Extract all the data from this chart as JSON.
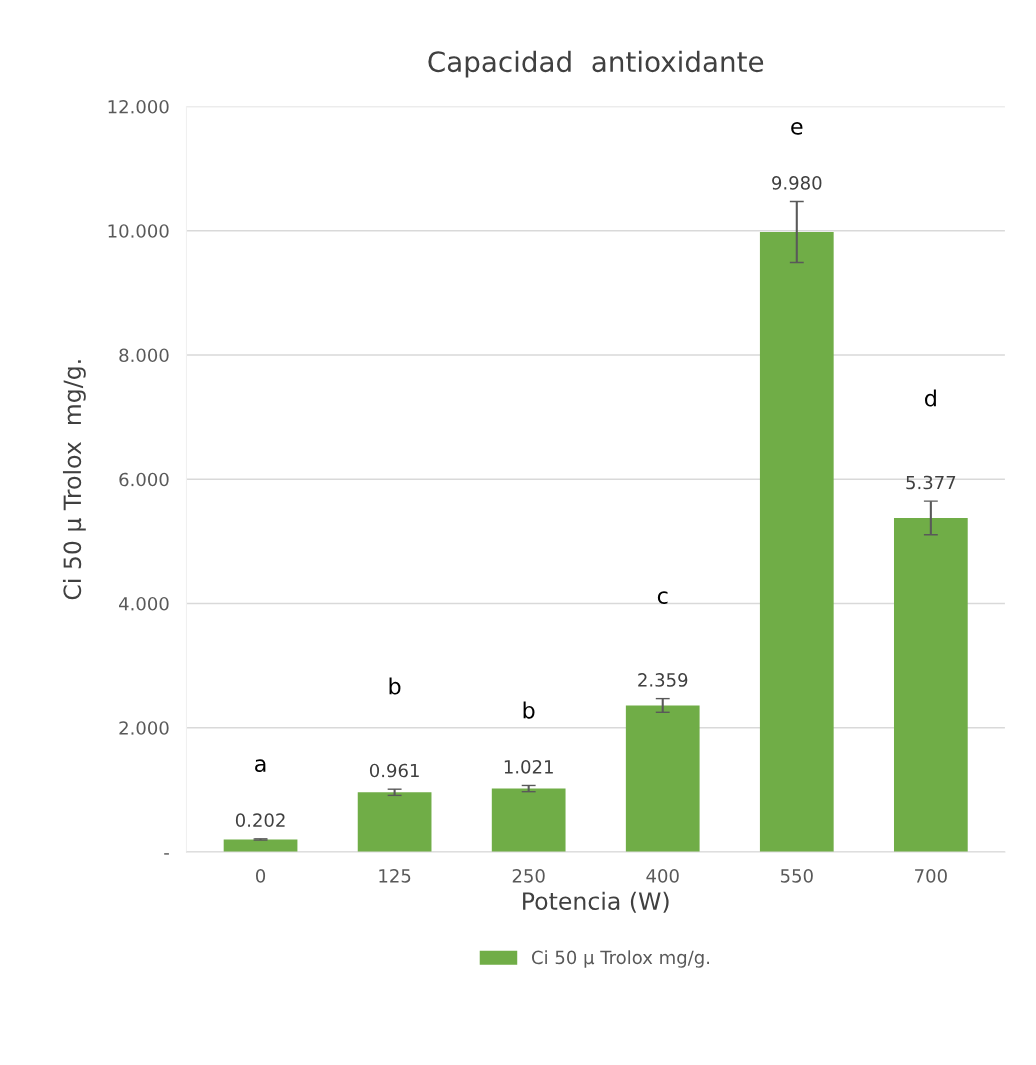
{
  "chart_data": {
    "type": "bar",
    "title": "Capacidad  antioxidante",
    "xlabel": "Potencia (W)",
    "ylabel": "Ci 50 µ Trolox  mg/g.",
    "categories": [
      "0",
      "125",
      "250",
      "400",
      "550",
      "700"
    ],
    "series": [
      {
        "name": "Ci 50 µ Trolox mg/g.",
        "color": "#70ad47",
        "values": [
          0.202,
          0.961,
          1.021,
          2.359,
          9.98,
          5.377
        ],
        "errors": [
          0.01,
          0.05,
          0.05,
          0.11,
          0.49,
          0.27
        ],
        "value_labels": [
          "0.202",
          "0.961",
          "1.021",
          "2.359",
          "9.980",
          "5.377"
        ]
      }
    ],
    "ylim": [
      0,
      12
    ],
    "yticks": [
      {
        "value": 0,
        "label": "-"
      },
      {
        "value": 2,
        "label": "2.000"
      },
      {
        "value": 4,
        "label": "4.000"
      },
      {
        "value": 6,
        "label": "6.000"
      },
      {
        "value": 8,
        "label": "8.000"
      },
      {
        "value": 10,
        "label": "10.000"
      },
      {
        "value": 12,
        "label": "12.000"
      }
    ],
    "annotations": [
      "a",
      "b",
      "b",
      "c",
      "e",
      "d"
    ],
    "grid": "y",
    "legend": "bottom"
  }
}
